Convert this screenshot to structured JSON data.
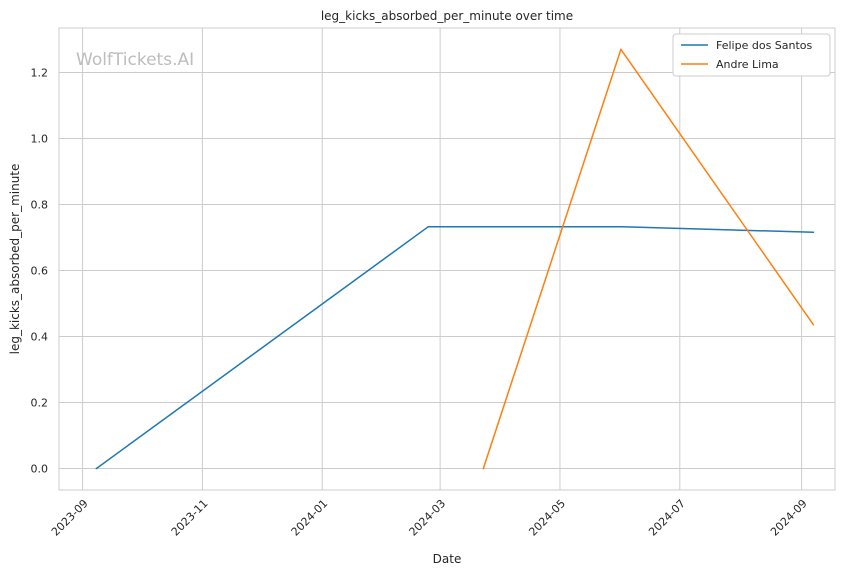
{
  "chart_data": {
    "type": "line",
    "title": "leg_kicks_absorbed_per_minute over time",
    "xlabel": "Date",
    "ylabel": "leg_kicks_absorbed_per_minute",
    "watermark": "WolfTickets.AI",
    "x_tick_labels": [
      "2023-09",
      "2023-11",
      "2024-01",
      "2024-03",
      "2024-05",
      "2024-07",
      "2024-09"
    ],
    "y_tick_labels": [
      "0.0",
      "0.2",
      "0.4",
      "0.6",
      "0.8",
      "1.0",
      "1.2"
    ],
    "ylim": [
      -0.065,
      1.335
    ],
    "xlim": [
      "2023-08-20",
      "2024-09-18"
    ],
    "grid": true,
    "legend_position": "top-right",
    "series": [
      {
        "name": "Felipe dos Santos",
        "color": "#1f77b4",
        "points": [
          {
            "x": "2023-09-08",
            "y": 0.0
          },
          {
            "x": "2024-02-24",
            "y": 0.733
          },
          {
            "x": "2024-06-01",
            "y": 0.733
          },
          {
            "x": "2024-09-07",
            "y": 0.716
          }
        ]
      },
      {
        "name": "Andre Lima",
        "color": "#ff7f0e",
        "points": [
          {
            "x": "2024-03-23",
            "y": 0.0
          },
          {
            "x": "2024-06-01",
            "y": 1.27
          },
          {
            "x": "2024-09-07",
            "y": 0.436
          }
        ]
      }
    ]
  }
}
